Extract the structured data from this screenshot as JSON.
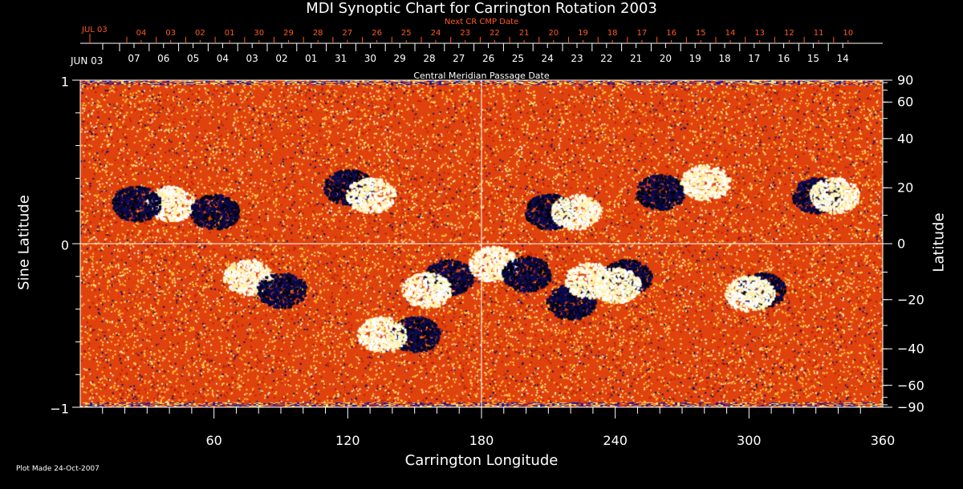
{
  "chart_data": {
    "type": "heatmap",
    "title": "MDI Synoptic Chart for Carrington Rotation 2003",
    "xlabel": "Carrington Longitude",
    "ylabel": "Sine Latitude",
    "y2label": "Latitude",
    "xlim": [
      0,
      360
    ],
    "ylim": [
      -1,
      1
    ],
    "x_ticks": [
      "60",
      "120",
      "180",
      "240",
      "300",
      "360"
    ],
    "y_ticks": [
      "1",
      "0",
      "−1"
    ],
    "y_tick_values": [
      1,
      0,
      -1
    ],
    "y2_ticks": [
      "90",
      "60",
      "40",
      "20",
      "0",
      "−20",
      "−40",
      "−60",
      "−90"
    ],
    "y2_tick_values": [
      90,
      60,
      40,
      20,
      0,
      -20,
      -40,
      -60,
      -90
    ],
    "top_axis_label": "Central Meridian Passage Date",
    "top_axis_start": "JUN 03",
    "top_axis_dates": [
      "07",
      "06",
      "05",
      "04",
      "03",
      "02",
      "01",
      "31",
      "30",
      "29",
      "28",
      "27",
      "26",
      "25",
      "24",
      "23",
      "22",
      "21",
      "20",
      "19",
      "18",
      "17",
      "16",
      "15",
      "14"
    ],
    "next_axis_label": "Next CR CMP Date",
    "next_axis_start": "JUL 03",
    "next_axis_dates": [
      "04",
      "03",
      "02",
      "01",
      "30",
      "29",
      "28",
      "27",
      "26",
      "25",
      "24",
      "23",
      "22",
      "21",
      "20",
      "19",
      "18",
      "17",
      "16",
      "15",
      "14",
      "13",
      "12",
      "11",
      "10"
    ],
    "colors": {
      "background": "#e8400c",
      "positive": "#ffffff",
      "negative": "#0a0a60",
      "next_axis": "#ff5a1e"
    }
  },
  "footer": "Plot Made 24-Oct-2007"
}
